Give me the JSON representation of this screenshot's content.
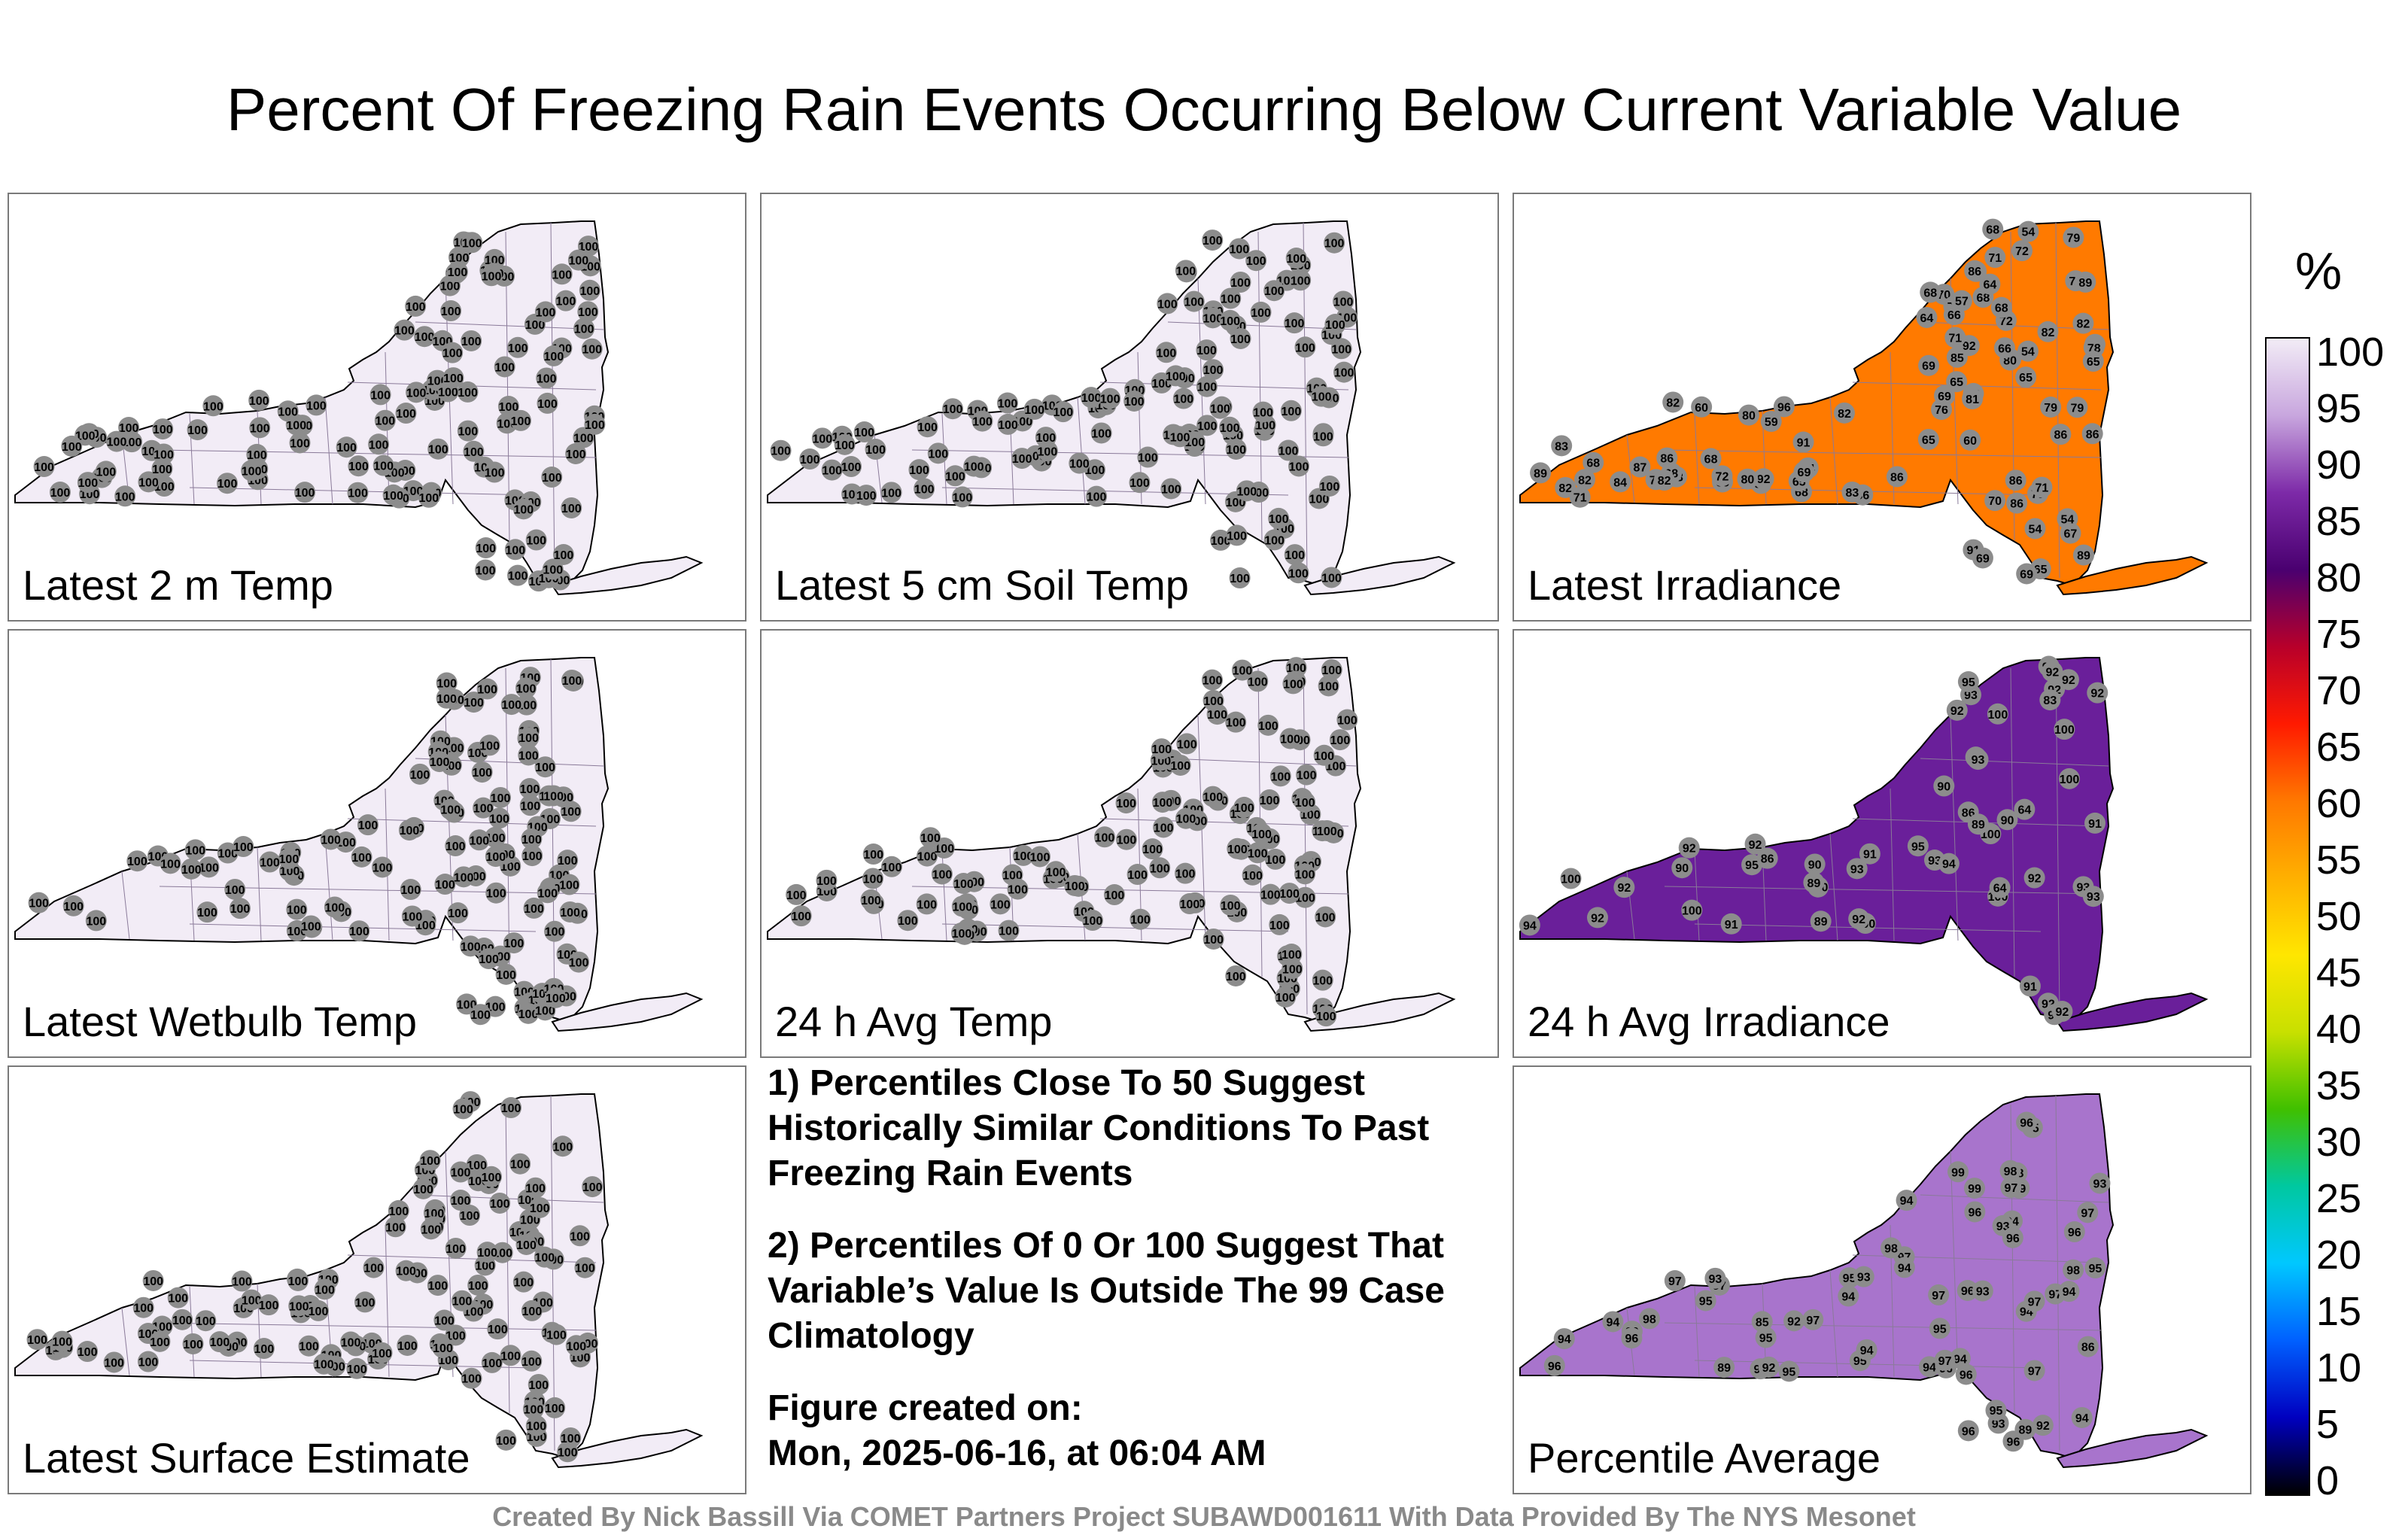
{
  "title": "Percent Of Freezing Rain Events Occurring Below Current Variable Value",
  "colorbar": {
    "unit": "%",
    "ticks": [
      "100",
      "95",
      "90",
      "85",
      "80",
      "75",
      "70",
      "65",
      "60",
      "55",
      "50",
      "45",
      "40",
      "35",
      "30",
      "25",
      "20",
      "15",
      "10",
      "5",
      "0"
    ],
    "stops": [
      "#f2ecf6",
      "#c8a6de",
      "#7d2aa8",
      "#4a0070",
      "#b8002a",
      "#ff1a00",
      "#ff7800",
      "#ffb000",
      "#ffe600",
      "#c8e000",
      "#40c000",
      "#00c8a0",
      "#00c8ff",
      "#0060ff",
      "#0000c0",
      "#000000"
    ]
  },
  "panels": [
    {
      "label": "Latest 2 m Temp",
      "fill": "#f2ecf6",
      "stations": [
        "100"
      ]
    },
    {
      "label": "Latest 5 cm Soil Temp",
      "fill": "#f2ecf6",
      "stations": [
        "100"
      ]
    },
    {
      "label": "Latest Irradiance",
      "fill": "#ff7a00",
      "stations": [
        "89",
        "92",
        "94",
        "86",
        "86",
        "83",
        "85",
        "82",
        "86",
        "76",
        "69",
        "91",
        "86",
        "91",
        "96",
        "87",
        "92",
        "79",
        "71",
        "82",
        "71",
        "86",
        "83",
        "86",
        "81",
        "80",
        "79",
        "72",
        "72",
        "78",
        "70",
        "68",
        "83",
        "89",
        "80",
        "86",
        "82",
        "82",
        "71",
        "68",
        "68",
        "65",
        "66",
        "68",
        "71",
        "78",
        "86",
        "89",
        "70",
        "71",
        "65",
        "68",
        "69",
        "66",
        "80",
        "79",
        "68",
        "65",
        "64",
        "65",
        "68",
        "67",
        "65",
        "60",
        "82",
        "65",
        "54",
        "60",
        "57",
        "59",
        "71",
        "65",
        "68",
        "69",
        "71",
        "71",
        "85",
        "82",
        "84",
        "72",
        "86",
        "79",
        "86",
        "69",
        "54",
        "69",
        "82",
        "54",
        "54",
        "64"
      ]
    },
    {
      "label": "Latest Wetbulb Temp",
      "fill": "#f2ecf6",
      "stations": [
        "100"
      ]
    },
    {
      "label": "24 h Avg Temp",
      "fill": "#f2ecf6",
      "stations": [
        "100"
      ]
    },
    {
      "label": "24 h Avg Irradiance",
      "fill": "#6a1f9a",
      "stations": [
        "100",
        "100",
        "100",
        "97",
        "100",
        "93",
        "92",
        "95",
        "93",
        "100",
        "94",
        "92",
        "93",
        "92",
        "100",
        "100",
        "93",
        "92",
        "93",
        "93",
        "94",
        "95",
        "100",
        "95",
        "93",
        "92",
        "90",
        "91",
        "92",
        "92",
        "100",
        "89",
        "90",
        "86",
        "92",
        "92",
        "92",
        "91",
        "90",
        "92",
        "92",
        "89",
        "86",
        "90",
        "91",
        "91",
        "89",
        "83",
        "64",
        "64",
        "92",
        "92"
      ]
    },
    {
      "label": "Latest Surface Estimate",
      "fill": "#f2ecf6",
      "stations": [
        "100"
      ]
    },
    {
      "label": "Percentile Average",
      "fill": "#a874cc",
      "stations": [
        "98",
        "99",
        "98",
        "98",
        "99",
        "99",
        "96",
        "97",
        "97",
        "97",
        "98",
        "94",
        "95",
        "97",
        "97",
        "96",
        "96",
        "96",
        "96",
        "97",
        "97",
        "96",
        "98",
        "95",
        "95",
        "97",
        "97",
        "95",
        "94",
        "94",
        "95",
        "95",
        "95",
        "93",
        "93",
        "92",
        "93",
        "94",
        "93",
        "94",
        "94",
        "93",
        "95",
        "94",
        "92",
        "93",
        "94",
        "94",
        "96",
        "96",
        "97",
        "95",
        "96",
        "94",
        "94",
        "97",
        "92",
        "96",
        "96",
        "90",
        "89",
        "89",
        "86",
        "85",
        "94",
        "96"
      ]
    }
  ],
  "notes": {
    "line1": "1) Percentiles Close To 50 Suggest Historically Similar Conditions To Past Freezing Rain Events",
    "line2": "2) Percentiles Of 0 Or 100 Suggest That Variable’s Value Is Outside The 99 Case Climatology",
    "created_label": "Figure created on:",
    "created_value": "Mon, 2025-06-16, at 06:04 AM"
  },
  "footer": "Created By Nick Bassill Via COMET Partners Project SUBAWD001611 With Data Provided By The NYS Mesonet"
}
